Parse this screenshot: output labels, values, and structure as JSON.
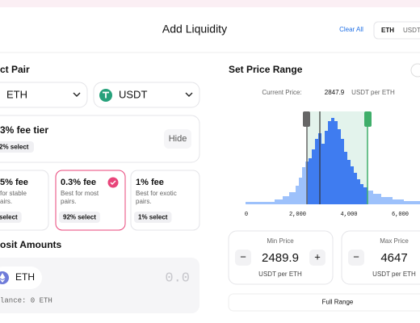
{
  "header": {
    "title": "Add Liquidity",
    "clear_all": "Clear All",
    "tabs": [
      "ETH",
      "USDT"
    ]
  },
  "select_pair": {
    "title": "ct Pair",
    "tokens": [
      "ETH",
      "USDT"
    ]
  },
  "fee_tier": {
    "title": "3% fee tier",
    "selected": "2% select",
    "hide": "Hide"
  },
  "fee_options": [
    {
      "fee": "5% fee",
      "desc": [
        "for stable",
        "airs."
      ],
      "selected": "select"
    },
    {
      "fee": "0.3% fee",
      "desc": [
        "Best for most",
        "pairs."
      ],
      "selected": "92% select"
    },
    {
      "fee": "1% fee",
      "desc": [
        "Best for exotic",
        "pairs."
      ],
      "selected": "1% select"
    }
  ],
  "deposit": {
    "title": "osit Amounts",
    "token": "ETH",
    "amount": "0.0",
    "balance": "lance: 0 ETH"
  },
  "price_range": {
    "title": "Set Price Range",
    "current_label": "Current Price:",
    "current_value": "2847.9",
    "unit": "USDT per ETH",
    "axis_labels": [
      "0",
      "2,000",
      "4,000",
      "6,000"
    ],
    "min": {
      "label": "Min Price",
      "minus": "−",
      "value": "2489.9",
      "plus": "+",
      "unit": "USDT per ETH"
    },
    "max": {
      "label": "Max Price",
      "minus": "−",
      "value": "4647",
      "unit": "USDT per ETH"
    },
    "full_range": "Full Range"
  }
}
